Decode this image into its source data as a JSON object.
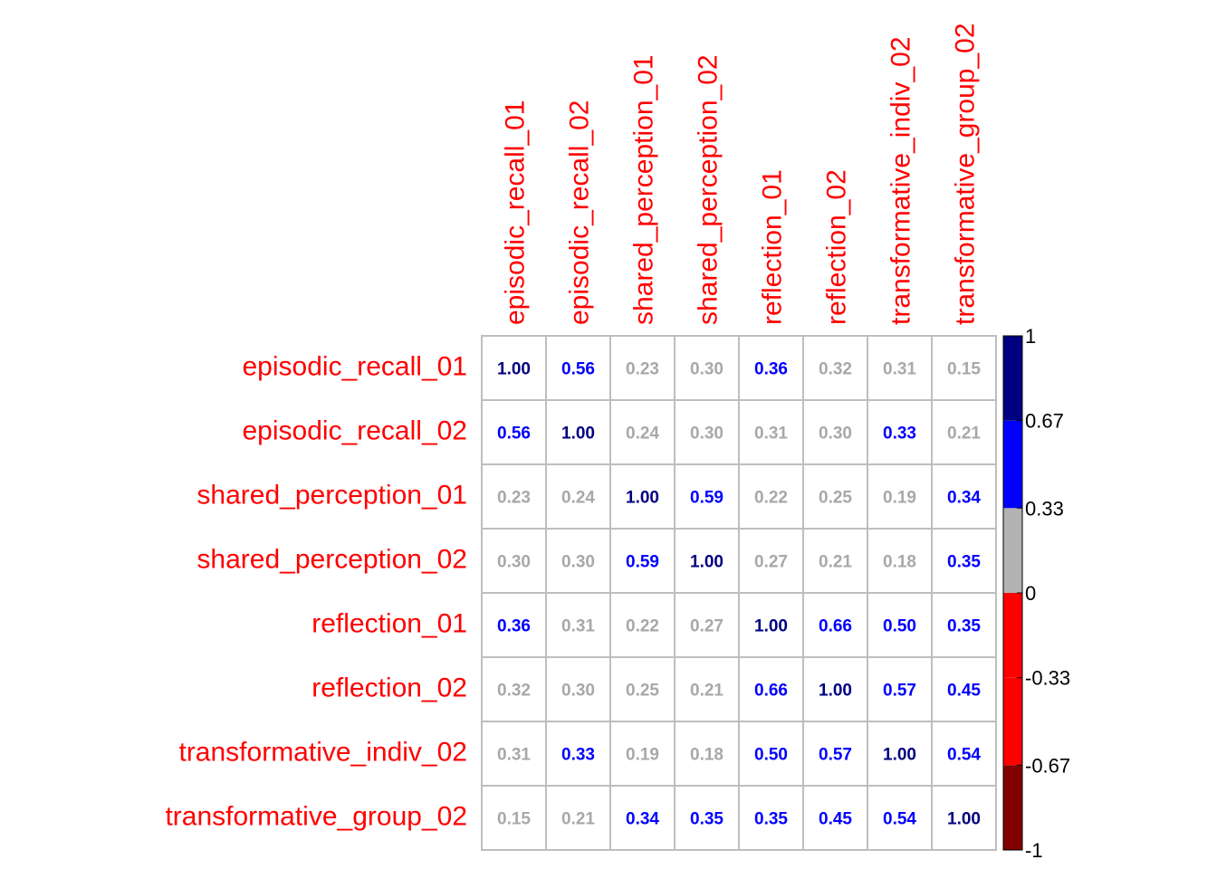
{
  "chart_data": {
    "type": "heatmap",
    "variables": [
      "episodic_recall_01",
      "episodic_recall_02",
      "shared_perception_01",
      "shared_perception_02",
      "reflection_01",
      "reflection_02",
      "transformative_indiv_02",
      "transformative_group_02"
    ],
    "matrix": [
      [
        1.0,
        0.56,
        0.23,
        0.3,
        0.36,
        0.32,
        0.31,
        0.15
      ],
      [
        0.56,
        1.0,
        0.24,
        0.3,
        0.31,
        0.3,
        0.33,
        0.21
      ],
      [
        0.23,
        0.24,
        1.0,
        0.59,
        0.22,
        0.25,
        0.19,
        0.34
      ],
      [
        0.3,
        0.3,
        0.59,
        1.0,
        0.27,
        0.21,
        0.18,
        0.35
      ],
      [
        0.36,
        0.31,
        0.22,
        0.27,
        1.0,
        0.66,
        0.5,
        0.35
      ],
      [
        0.32,
        0.3,
        0.25,
        0.21,
        0.66,
        1.0,
        0.57,
        0.45
      ],
      [
        0.31,
        0.33,
        0.19,
        0.18,
        0.5,
        0.57,
        1.0,
        0.54
      ],
      [
        0.15,
        0.21,
        0.34,
        0.35,
        0.35,
        0.45,
        0.54,
        1.0
      ]
    ],
    "label_color": "#ff0000",
    "grid_color": "#bebebe",
    "colorbar": {
      "range": [
        -1,
        1
      ],
      "bins": [
        {
          "min": -1,
          "max": -0.67,
          "color": "#800000"
        },
        {
          "min": -0.67,
          "max": -0.33,
          "color": "#ff0000"
        },
        {
          "min": -0.33,
          "max": 0,
          "color": "#ff0000"
        },
        {
          "min": 0,
          "max": 0.33,
          "color": "#b3b3b3"
        },
        {
          "min": 0.33,
          "max": 0.67,
          "color": "#0000ff"
        },
        {
          "min": 0.67,
          "max": 1,
          "color": "#000080"
        }
      ],
      "ticks": [
        {
          "value": 1,
          "label": "1"
        },
        {
          "value": 0.67,
          "label": "0.67"
        },
        {
          "value": 0.33,
          "label": "0.33"
        },
        {
          "value": 0,
          "label": "0"
        },
        {
          "value": -0.33,
          "label": "-0.33"
        },
        {
          "value": -0.67,
          "label": "-0.67"
        },
        {
          "value": -1,
          "label": "-1"
        }
      ]
    }
  }
}
